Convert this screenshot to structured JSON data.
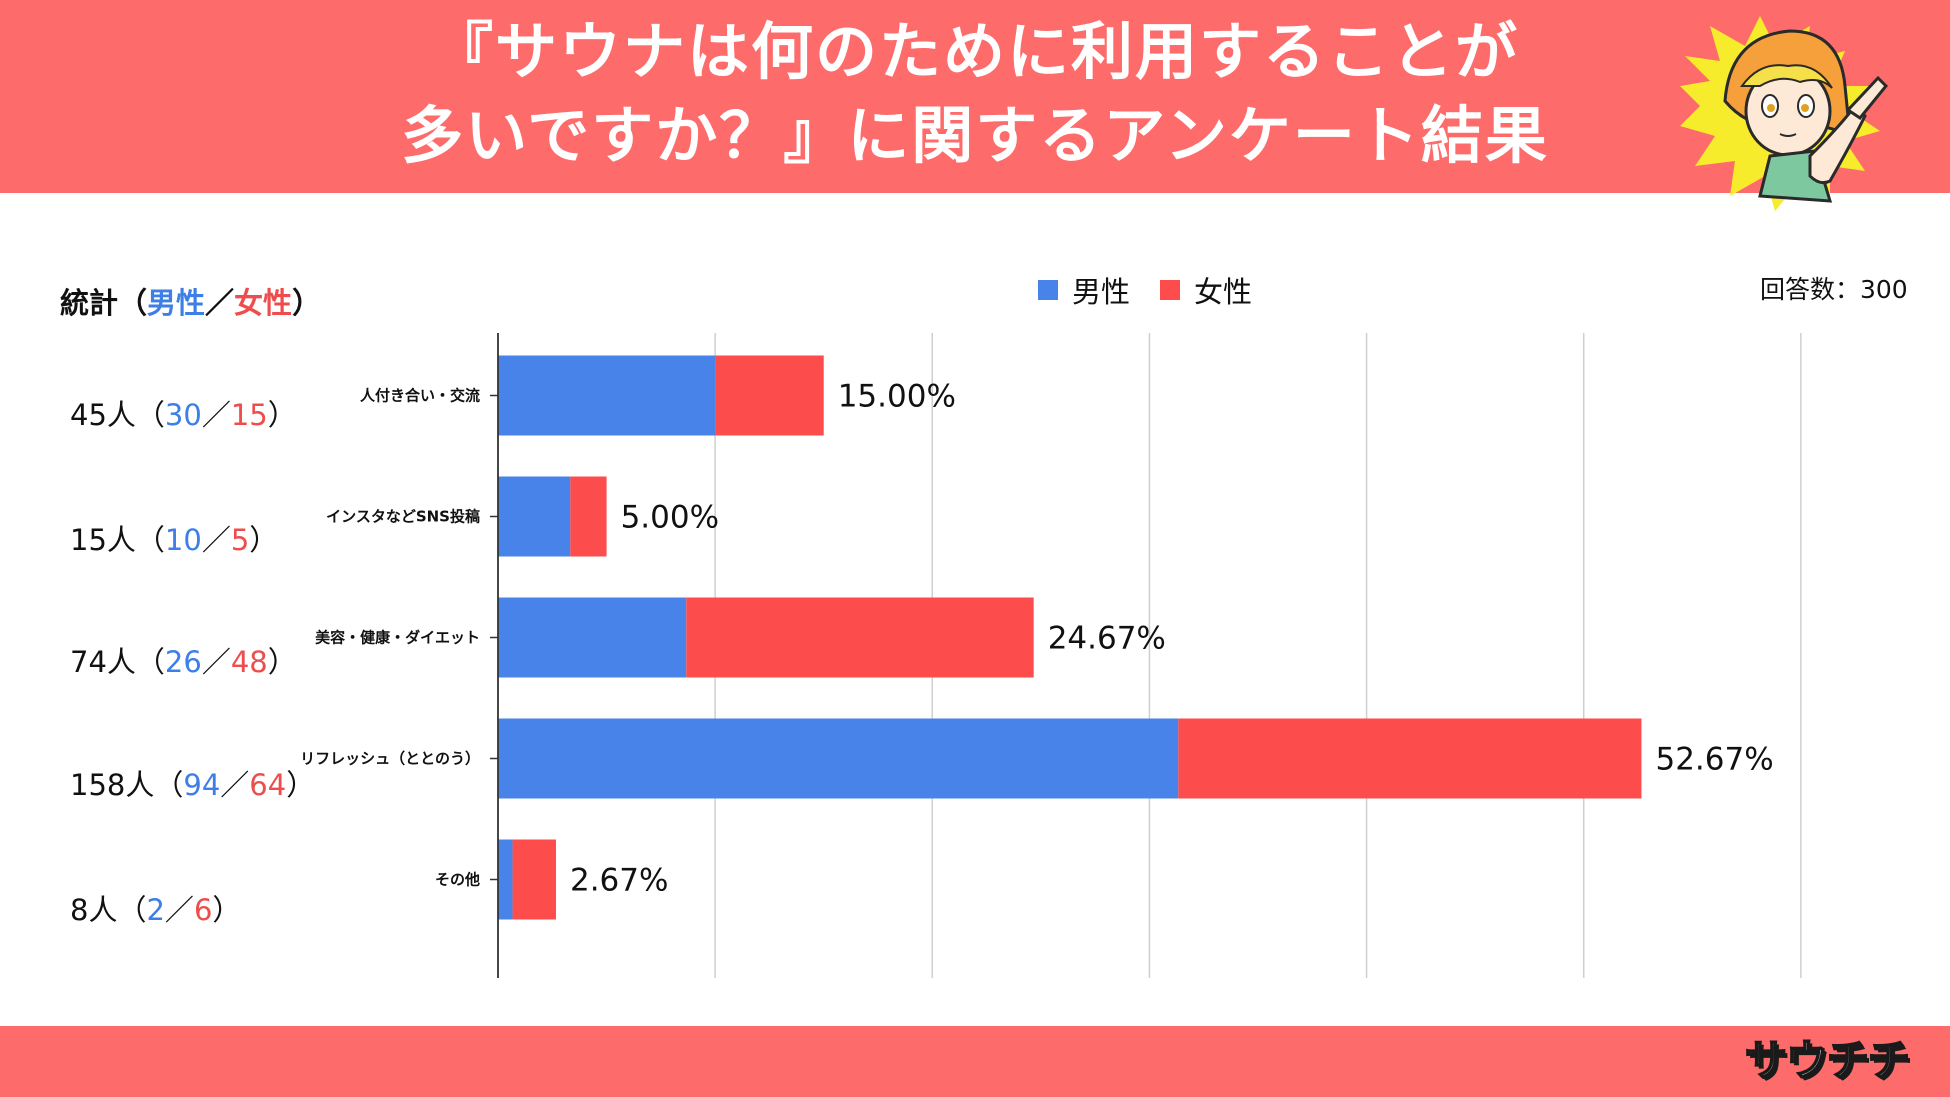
{
  "header": {
    "title_line1": "『サウナは何のために利用することが",
    "title_line2": "多いですか？』に関するアンケート結果"
  },
  "stats_heading": {
    "prefix": "統計（",
    "male": "男性",
    "sep": "／",
    "female": "女性",
    "suffix": "）"
  },
  "legend": {
    "male": "男性",
    "female": "女性"
  },
  "responses_label": "回答数：300",
  "logo_text": "サウチチ",
  "colors": {
    "header": "#fd6b6b",
    "male": "#4883ea",
    "female": "#fd4c4c",
    "male_text": "#3d7fe6",
    "female_text": "#ef4d4d"
  },
  "rows": [
    {
      "total": "45人",
      "open": "（",
      "male": "30",
      "sep": "／",
      "female": "15",
      "close": "）"
    },
    {
      "total": "15人",
      "open": "（",
      "male": "10",
      "sep": "／",
      "female": "5",
      "close": "）"
    },
    {
      "total": "74人",
      "open": "（",
      "male": "26",
      "sep": "／",
      "female": "48",
      "close": "）"
    },
    {
      "total": "158人",
      "open": "（",
      "male": "94",
      "sep": "／",
      "female": "64",
      "close": "）"
    },
    {
      "total": "8人",
      "open": "（",
      "male": "2",
      "sep": "／",
      "female": "6",
      "close": "）"
    }
  ],
  "chart_data": {
    "type": "bar",
    "orientation": "horizontal",
    "stacked": true,
    "categories": [
      "人付き合い・交流",
      "インスタなどSNS投稿",
      "美容・健康・ダイエット",
      "リフレッシュ（ととのう）",
      "その他"
    ],
    "series": [
      {
        "name": "男性",
        "values": [
          10.0,
          3.33,
          8.67,
          31.33,
          0.67
        ]
      },
      {
        "name": "女性",
        "values": [
          5.0,
          1.67,
          16.0,
          21.33,
          2.0
        ]
      }
    ],
    "data_labels": [
      "15.00%",
      "5.00%",
      "24.67%",
      "52.67%",
      "2.67%"
    ],
    "xlim": [
      0,
      63
    ],
    "grid": true,
    "legend": "top"
  }
}
